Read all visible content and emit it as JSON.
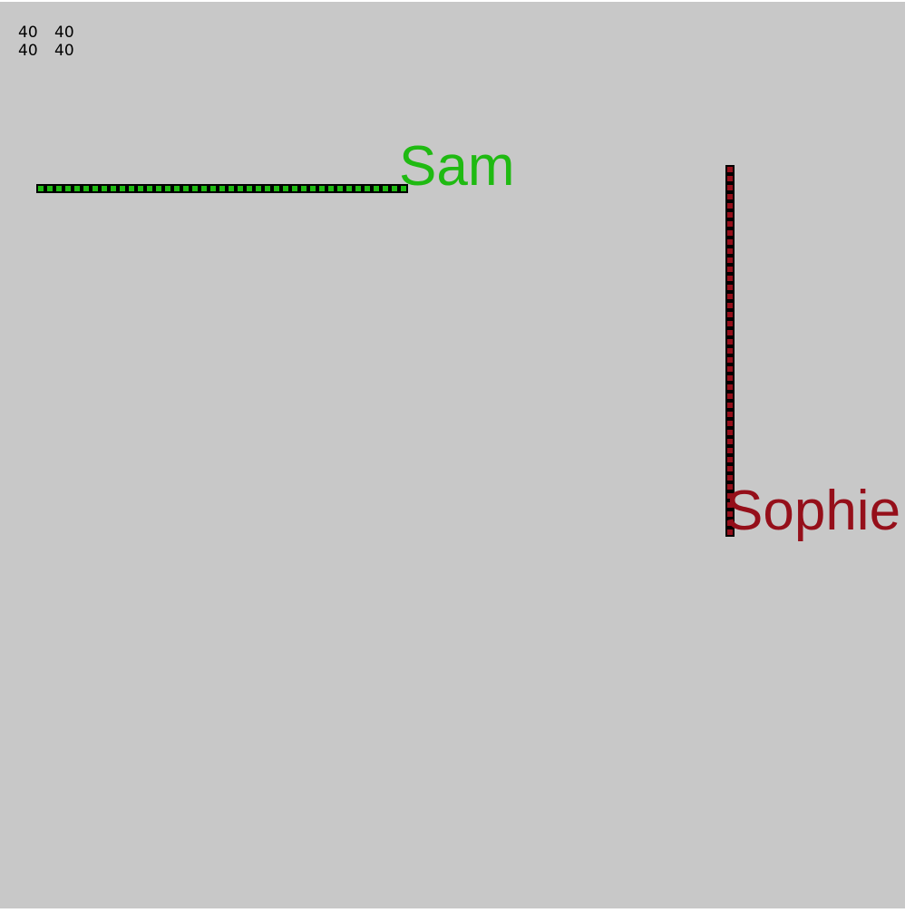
{
  "scores": {
    "row1": [
      "40",
      "40"
    ],
    "row2": [
      "40",
      "40"
    ]
  },
  "players": [
    {
      "id": "sam",
      "name": "Sam",
      "color": "#1fba12",
      "length": 41,
      "direction": "horizontal"
    },
    {
      "id": "sophie",
      "name": "Sophie",
      "color": "#950f1a",
      "length": 41,
      "direction": "vertical"
    }
  ]
}
